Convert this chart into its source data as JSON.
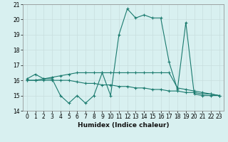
{
  "xlabel": "Humidex (Indice chaleur)",
  "x_values": [
    0,
    1,
    2,
    3,
    4,
    5,
    6,
    7,
    8,
    9,
    10,
    11,
    12,
    13,
    14,
    15,
    16,
    17,
    18,
    19,
    20,
    21,
    22,
    23
  ],
  "line1_y": [
    16.1,
    16.4,
    16.1,
    16.1,
    15.0,
    14.5,
    15.0,
    14.5,
    15.0,
    16.5,
    15.0,
    19.0,
    20.7,
    20.1,
    20.3,
    20.1,
    20.1,
    17.2,
    15.4,
    19.8,
    15.1,
    15.0,
    15.0,
    15.0
  ],
  "line2_y": [
    16.0,
    16.0,
    16.0,
    16.0,
    16.0,
    16.0,
    15.9,
    15.8,
    15.8,
    15.7,
    15.7,
    15.6,
    15.6,
    15.5,
    15.5,
    15.4,
    15.4,
    15.3,
    15.3,
    15.2,
    15.2,
    15.1,
    15.1,
    15.0
  ],
  "line3_y": [
    16.0,
    16.0,
    16.1,
    16.2,
    16.3,
    16.4,
    16.5,
    16.5,
    16.5,
    16.5,
    16.5,
    16.5,
    16.5,
    16.5,
    16.5,
    16.5,
    16.5,
    16.5,
    15.5,
    15.4,
    15.3,
    15.2,
    15.1,
    15.0
  ],
  "line_color": "#1a7a6e",
  "bg_color": "#d8f0f0",
  "grid_color": "#c8dede",
  "ylim": [
    14.0,
    21.0
  ],
  "xlim": [
    -0.5,
    23.5
  ],
  "yticks": [
    14,
    15,
    16,
    17,
    18,
    19,
    20,
    21
  ],
  "xticks": [
    0,
    1,
    2,
    3,
    4,
    5,
    6,
    7,
    8,
    9,
    10,
    11,
    12,
    13,
    14,
    15,
    16,
    17,
    18,
    19,
    20,
    21,
    22,
    23
  ],
  "marker": "+",
  "markersize": 3,
  "linewidth": 0.8,
  "tick_fontsize": 5.5,
  "xlabel_fontsize": 6.5
}
